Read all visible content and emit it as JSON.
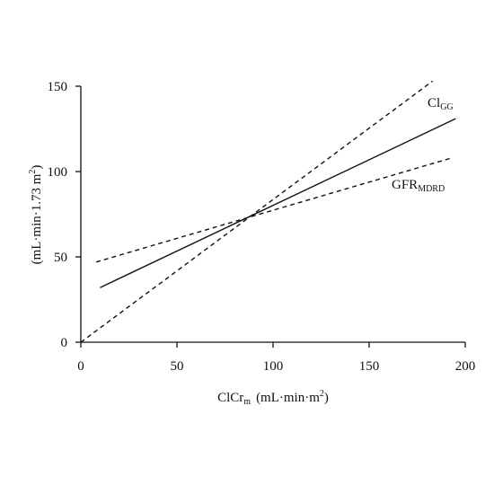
{
  "chart_data": {
    "type": "line",
    "xlabel": {
      "main": "ClCr",
      "subscript": "m",
      "units": "(mL·min·m",
      "units_sup": "2",
      "units_close": ")"
    },
    "ylabel": {
      "units": "(mL·min·1.73 m",
      "units_sup": "2",
      "units_close": ")"
    },
    "xlim": [
      0,
      200
    ],
    "ylim": [
      0,
      150
    ],
    "xticks": [
      "0",
      "50",
      "100",
      "150",
      "200"
    ],
    "yticks": [
      "0",
      "50",
      "100",
      "150"
    ],
    "grid": false,
    "legend": "none",
    "series": [
      {
        "name": "Cl",
        "subscript": "GG",
        "style": "dashed",
        "x": [
          0,
          183
        ],
        "y": [
          0,
          153
        ]
      },
      {
        "name": "",
        "style": "solid",
        "x": [
          10,
          195
        ],
        "y": [
          32,
          131
        ]
      },
      {
        "name": "GFR",
        "subscript": "MDRD",
        "style": "dashed",
        "x": [
          8,
          193
        ],
        "y": [
          47,
          108
        ]
      }
    ]
  }
}
